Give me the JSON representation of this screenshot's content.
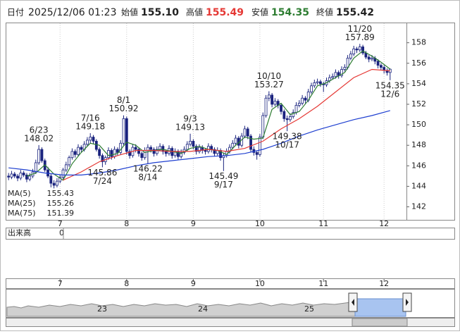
{
  "header": {
    "date_label": "日付",
    "date": "2025/12/06 01:23",
    "open_label": "始値",
    "open": "155.10",
    "high_label": "高値",
    "high": "155.49",
    "low_label": "安値",
    "low": "154.35",
    "close_label": "終値",
    "close": "155.42"
  },
  "volume": {
    "label": "出来高",
    "value": "0"
  },
  "navigator": {
    "labels": [
      "23",
      "24",
      "25"
    ]
  },
  "chart_data": {
    "type": "candlestick",
    "up_color": "#ffffff",
    "down_color": "#1a237e",
    "edge_color": "#1a237e",
    "xlim": [
      -0.5,
      131.4
    ],
    "ylim": [
      140.8,
      159.9
    ],
    "yticks": [
      142,
      144,
      146,
      148,
      150,
      152,
      154,
      156,
      158
    ],
    "xticks": [
      {
        "value": 17,
        "label": "7"
      },
      {
        "value": 39,
        "label": "8"
      },
      {
        "value": 61,
        "label": "9"
      },
      {
        "value": 83,
        "label": "10"
      },
      {
        "value": 104,
        "label": "11"
      },
      {
        "value": 124,
        "label": "12"
      }
    ],
    "grid": true,
    "ohlc": [
      [
        145.0,
        145.3,
        144.6,
        144.9
      ],
      [
        144.9,
        145.5,
        144.7,
        145.2
      ],
      [
        145.2,
        145.4,
        144.8,
        145.0
      ],
      [
        145.0,
        145.2,
        144.5,
        144.8
      ],
      [
        144.8,
        145.6,
        144.6,
        145.3
      ],
      [
        145.3,
        145.5,
        144.9,
        145.1
      ],
      [
        145.1,
        145.3,
        144.4,
        144.7
      ],
      [
        144.7,
        145.3,
        144.5,
        145.0
      ],
      [
        145.0,
        145.7,
        144.8,
        145.4
      ],
      [
        145.4,
        146.6,
        145.2,
        146.3
      ],
      [
        146.3,
        148.02,
        146.1,
        147.6
      ],
      [
        147.6,
        147.8,
        146.3,
        146.5
      ],
      [
        146.5,
        146.7,
        145.4,
        145.6
      ],
      [
        145.6,
        145.9,
        144.8,
        145.0
      ],
      [
        145.0,
        145.2,
        143.9,
        144.3
      ],
      [
        144.3,
        144.6,
        143.8,
        144.1
      ],
      [
        144.1,
        144.8,
        143.9,
        144.5
      ],
      [
        144.5,
        145.1,
        144.3,
        144.9
      ],
      [
        144.9,
        145.8,
        144.7,
        145.6
      ],
      [
        145.6,
        146.4,
        145.4,
        146.1
      ],
      [
        146.1,
        147.0,
        145.9,
        146.8
      ],
      [
        146.8,
        147.7,
        146.6,
        147.4
      ],
      [
        147.4,
        147.6,
        146.8,
        147.1
      ],
      [
        147.1,
        148.1,
        146.9,
        147.8
      ],
      [
        147.8,
        148.0,
        147.3,
        147.6
      ],
      [
        147.6,
        148.4,
        147.4,
        148.1
      ],
      [
        148.1,
        148.8,
        147.9,
        148.5
      ],
      [
        148.5,
        149.18,
        148.2,
        148.8
      ],
      [
        148.8,
        149.0,
        148.1,
        148.4
      ],
      [
        148.4,
        148.6,
        147.4,
        147.6
      ],
      [
        147.6,
        147.8,
        146.7,
        147.0
      ],
      [
        147.0,
        147.2,
        145.86,
        146.4
      ],
      [
        146.4,
        147.0,
        146.1,
        146.8
      ],
      [
        146.8,
        147.8,
        146.6,
        147.5
      ],
      [
        147.5,
        147.7,
        146.6,
        146.9
      ],
      [
        146.9,
        147.9,
        146.7,
        147.6
      ],
      [
        147.6,
        147.8,
        147.0,
        147.3
      ],
      [
        147.3,
        148.5,
        147.1,
        148.2
      ],
      [
        148.2,
        150.92,
        148.0,
        150.6
      ],
      [
        150.6,
        150.8,
        147.1,
        147.4
      ],
      [
        147.4,
        147.6,
        146.7,
        147.0
      ],
      [
        147.0,
        148.1,
        146.8,
        147.8
      ],
      [
        147.8,
        148.1,
        147.3,
        147.6
      ],
      [
        147.6,
        147.8,
        146.9,
        147.2
      ],
      [
        147.2,
        147.4,
        146.5,
        146.8
      ],
      [
        146.8,
        147.8,
        146.6,
        147.5
      ],
      [
        147.5,
        148.1,
        146.22,
        147.8
      ],
      [
        147.8,
        148.0,
        147.3,
        147.6
      ],
      [
        147.6,
        147.8,
        146.9,
        147.2
      ],
      [
        147.2,
        147.9,
        147.0,
        147.6
      ],
      [
        147.6,
        148.2,
        147.4,
        147.9
      ],
      [
        147.9,
        148.1,
        147.1,
        147.4
      ],
      [
        147.4,
        147.6,
        146.9,
        147.2
      ],
      [
        147.2,
        148.0,
        147.0,
        147.7
      ],
      [
        147.7,
        147.9,
        146.7,
        147.0
      ],
      [
        147.0,
        147.7,
        146.8,
        147.4
      ],
      [
        147.4,
        147.6,
        146.6,
        146.9
      ],
      [
        146.9,
        147.6,
        146.7,
        147.3
      ],
      [
        147.3,
        147.9,
        147.1,
        147.6
      ],
      [
        147.6,
        148.4,
        147.4,
        148.1
      ],
      [
        148.1,
        149.13,
        147.9,
        148.4
      ],
      [
        148.4,
        148.6,
        147.6,
        147.9
      ],
      [
        147.9,
        148.1,
        147.1,
        147.4
      ],
      [
        147.4,
        148.1,
        147.2,
        147.8
      ],
      [
        147.8,
        148.0,
        147.2,
        147.5
      ],
      [
        147.5,
        147.7,
        147.1,
        147.4
      ],
      [
        147.4,
        148.2,
        147.2,
        147.9
      ],
      [
        147.9,
        148.1,
        147.3,
        147.6
      ],
      [
        147.6,
        147.8,
        146.9,
        147.2
      ],
      [
        147.2,
        147.8,
        147.0,
        147.5
      ],
      [
        147.5,
        147.7,
        146.5,
        146.8
      ],
      [
        146.8,
        147.3,
        145.49,
        147.0
      ],
      [
        147.0,
        147.7,
        146.8,
        147.4
      ],
      [
        147.4,
        148.1,
        147.2,
        147.8
      ],
      [
        147.8,
        148.5,
        147.6,
        148.2
      ],
      [
        148.2,
        149.0,
        148.0,
        148.7
      ],
      [
        148.7,
        148.9,
        147.7,
        148.0
      ],
      [
        148.0,
        149.2,
        147.8,
        148.9
      ],
      [
        148.9,
        149.9,
        148.7,
        149.6
      ],
      [
        149.6,
        149.8,
        148.6,
        148.9
      ],
      [
        148.9,
        149.1,
        147.3,
        147.6
      ],
      [
        147.6,
        147.9,
        147.0,
        147.3
      ],
      [
        147.3,
        147.5,
        146.6,
        147.1
      ],
      [
        147.1,
        149.1,
        146.9,
        148.8
      ],
      [
        148.8,
        151.2,
        148.6,
        150.9
      ],
      [
        150.9,
        152.9,
        150.7,
        152.6
      ],
      [
        152.6,
        153.27,
        152.3,
        152.9
      ],
      [
        152.9,
        153.1,
        151.7,
        152.0
      ],
      [
        152.0,
        152.6,
        151.8,
        152.3
      ],
      [
        152.3,
        152.5,
        151.6,
        151.9
      ],
      [
        151.9,
        152.1,
        151.0,
        151.3
      ],
      [
        151.3,
        151.5,
        150.3,
        150.6
      ],
      [
        150.6,
        150.9,
        149.38,
        150.5
      ],
      [
        150.5,
        151.1,
        150.3,
        150.8
      ],
      [
        150.8,
        151.5,
        150.6,
        151.2
      ],
      [
        151.2,
        152.2,
        151.0,
        151.9
      ],
      [
        151.9,
        152.4,
        151.7,
        152.1
      ],
      [
        152.1,
        152.9,
        151.9,
        152.6
      ],
      [
        152.6,
        152.8,
        152.1,
        152.4
      ],
      [
        152.4,
        153.5,
        152.2,
        153.2
      ],
      [
        153.2,
        154.1,
        153.0,
        153.8
      ],
      [
        153.8,
        154.4,
        153.6,
        154.1
      ],
      [
        154.1,
        154.5,
        153.9,
        154.2
      ],
      [
        154.2,
        154.4,
        153.7,
        154.0
      ],
      [
        154.0,
        154.2,
        153.2,
        153.9
      ],
      [
        153.9,
        154.6,
        153.7,
        154.3
      ],
      [
        154.3,
        154.9,
        154.1,
        154.6
      ],
      [
        154.6,
        155.0,
        154.4,
        154.7
      ],
      [
        154.7,
        155.4,
        154.5,
        155.1
      ],
      [
        155.1,
        155.3,
        154.5,
        154.8
      ],
      [
        154.8,
        155.7,
        154.6,
        155.4
      ],
      [
        155.4,
        155.9,
        155.2,
        155.6
      ],
      [
        155.6,
        156.8,
        155.4,
        156.5
      ],
      [
        156.5,
        157.2,
        156.3,
        156.9
      ],
      [
        156.9,
        157.7,
        156.7,
        157.4
      ],
      [
        157.4,
        157.6,
        157.0,
        157.3
      ],
      [
        157.3,
        157.89,
        157.1,
        157.6
      ],
      [
        157.6,
        157.8,
        156.8,
        157.0
      ],
      [
        157.0,
        157.2,
        156.4,
        156.6
      ],
      [
        156.6,
        156.8,
        156.1,
        156.4
      ],
      [
        156.4,
        156.8,
        156.2,
        156.5
      ],
      [
        156.5,
        156.7,
        155.9,
        156.2
      ],
      [
        156.2,
        156.4,
        155.5,
        155.8
      ],
      [
        155.8,
        156.0,
        155.3,
        155.6
      ],
      [
        155.6,
        155.8,
        155.0,
        155.3
      ],
      [
        155.3,
        155.5,
        154.8,
        155.1
      ],
      [
        155.1,
        155.49,
        154.35,
        155.42
      ]
    ],
    "series": [
      {
        "name": "MA(5)",
        "color": "#2e7d32",
        "x": [
          6,
          9,
          12,
          15,
          18,
          21,
          24,
          27,
          30,
          33,
          36,
          39,
          42,
          45,
          48,
          51,
          54,
          57,
          60,
          63,
          66,
          69,
          72,
          75,
          78,
          81,
          84,
          87,
          90,
          93,
          96,
          99,
          102,
          105,
          108,
          111,
          114,
          117,
          120,
          123,
          126
        ],
        "values": [
          145.0,
          145.3,
          146.1,
          145.2,
          144.6,
          146.2,
          147.3,
          148.2,
          148.0,
          147.0,
          147.2,
          148.3,
          148.0,
          147.3,
          147.5,
          147.6,
          147.4,
          147.2,
          147.7,
          147.9,
          147.6,
          147.5,
          147.1,
          148.0,
          148.8,
          148.6,
          148.7,
          151.5,
          152.1,
          151.0,
          151.3,
          152.4,
          153.8,
          154.1,
          154.6,
          155.1,
          156.5,
          157.2,
          156.7,
          156.1,
          155.43
        ]
      },
      {
        "name": "MA(25)",
        "color": "#e53935",
        "x": [
          18,
          24,
          30,
          36,
          42,
          48,
          54,
          60,
          66,
          72,
          78,
          84,
          90,
          96,
          102,
          108,
          114,
          120,
          126
        ],
        "values": [
          144.6,
          145.4,
          146.4,
          147.0,
          147.5,
          147.5,
          147.4,
          147.4,
          147.6,
          147.4,
          147.7,
          148.4,
          149.6,
          150.6,
          151.8,
          153.2,
          154.6,
          155.4,
          155.26
        ]
      },
      {
        "name": "MA(75)",
        "color": "#1e3fd0",
        "x": [
          0,
          6,
          12,
          18,
          24,
          30,
          36,
          42,
          48,
          54,
          60,
          66,
          72,
          78,
          84,
          90,
          96,
          102,
          108,
          114,
          120,
          126
        ],
        "values": [
          145.8,
          145.6,
          145.3,
          145.1,
          145.1,
          145.3,
          145.6,
          146.0,
          146.3,
          146.5,
          146.7,
          146.9,
          147.0,
          147.2,
          147.6,
          148.2,
          148.9,
          149.5,
          150.0,
          150.5,
          150.9,
          151.39
        ]
      }
    ],
    "annotations": [
      {
        "date": "6/23",
        "price": 148.02
      },
      {
        "date": "7/16",
        "price": 149.18
      },
      {
        "date": "7/24",
        "price": 145.86
      },
      {
        "date": "8/1",
        "price": 150.92
      },
      {
        "date": "8/14",
        "price": 146.22
      },
      {
        "date": "9/3",
        "price": 149.13
      },
      {
        "date": "9/17",
        "price": 145.49
      },
      {
        "date": "10/10",
        "price": 153.27
      },
      {
        "date": "10/17",
        "price": 149.38
      },
      {
        "date": "11/20",
        "price": 157.89
      },
      {
        "date": "12/6",
        "price": 154.35
      }
    ]
  }
}
